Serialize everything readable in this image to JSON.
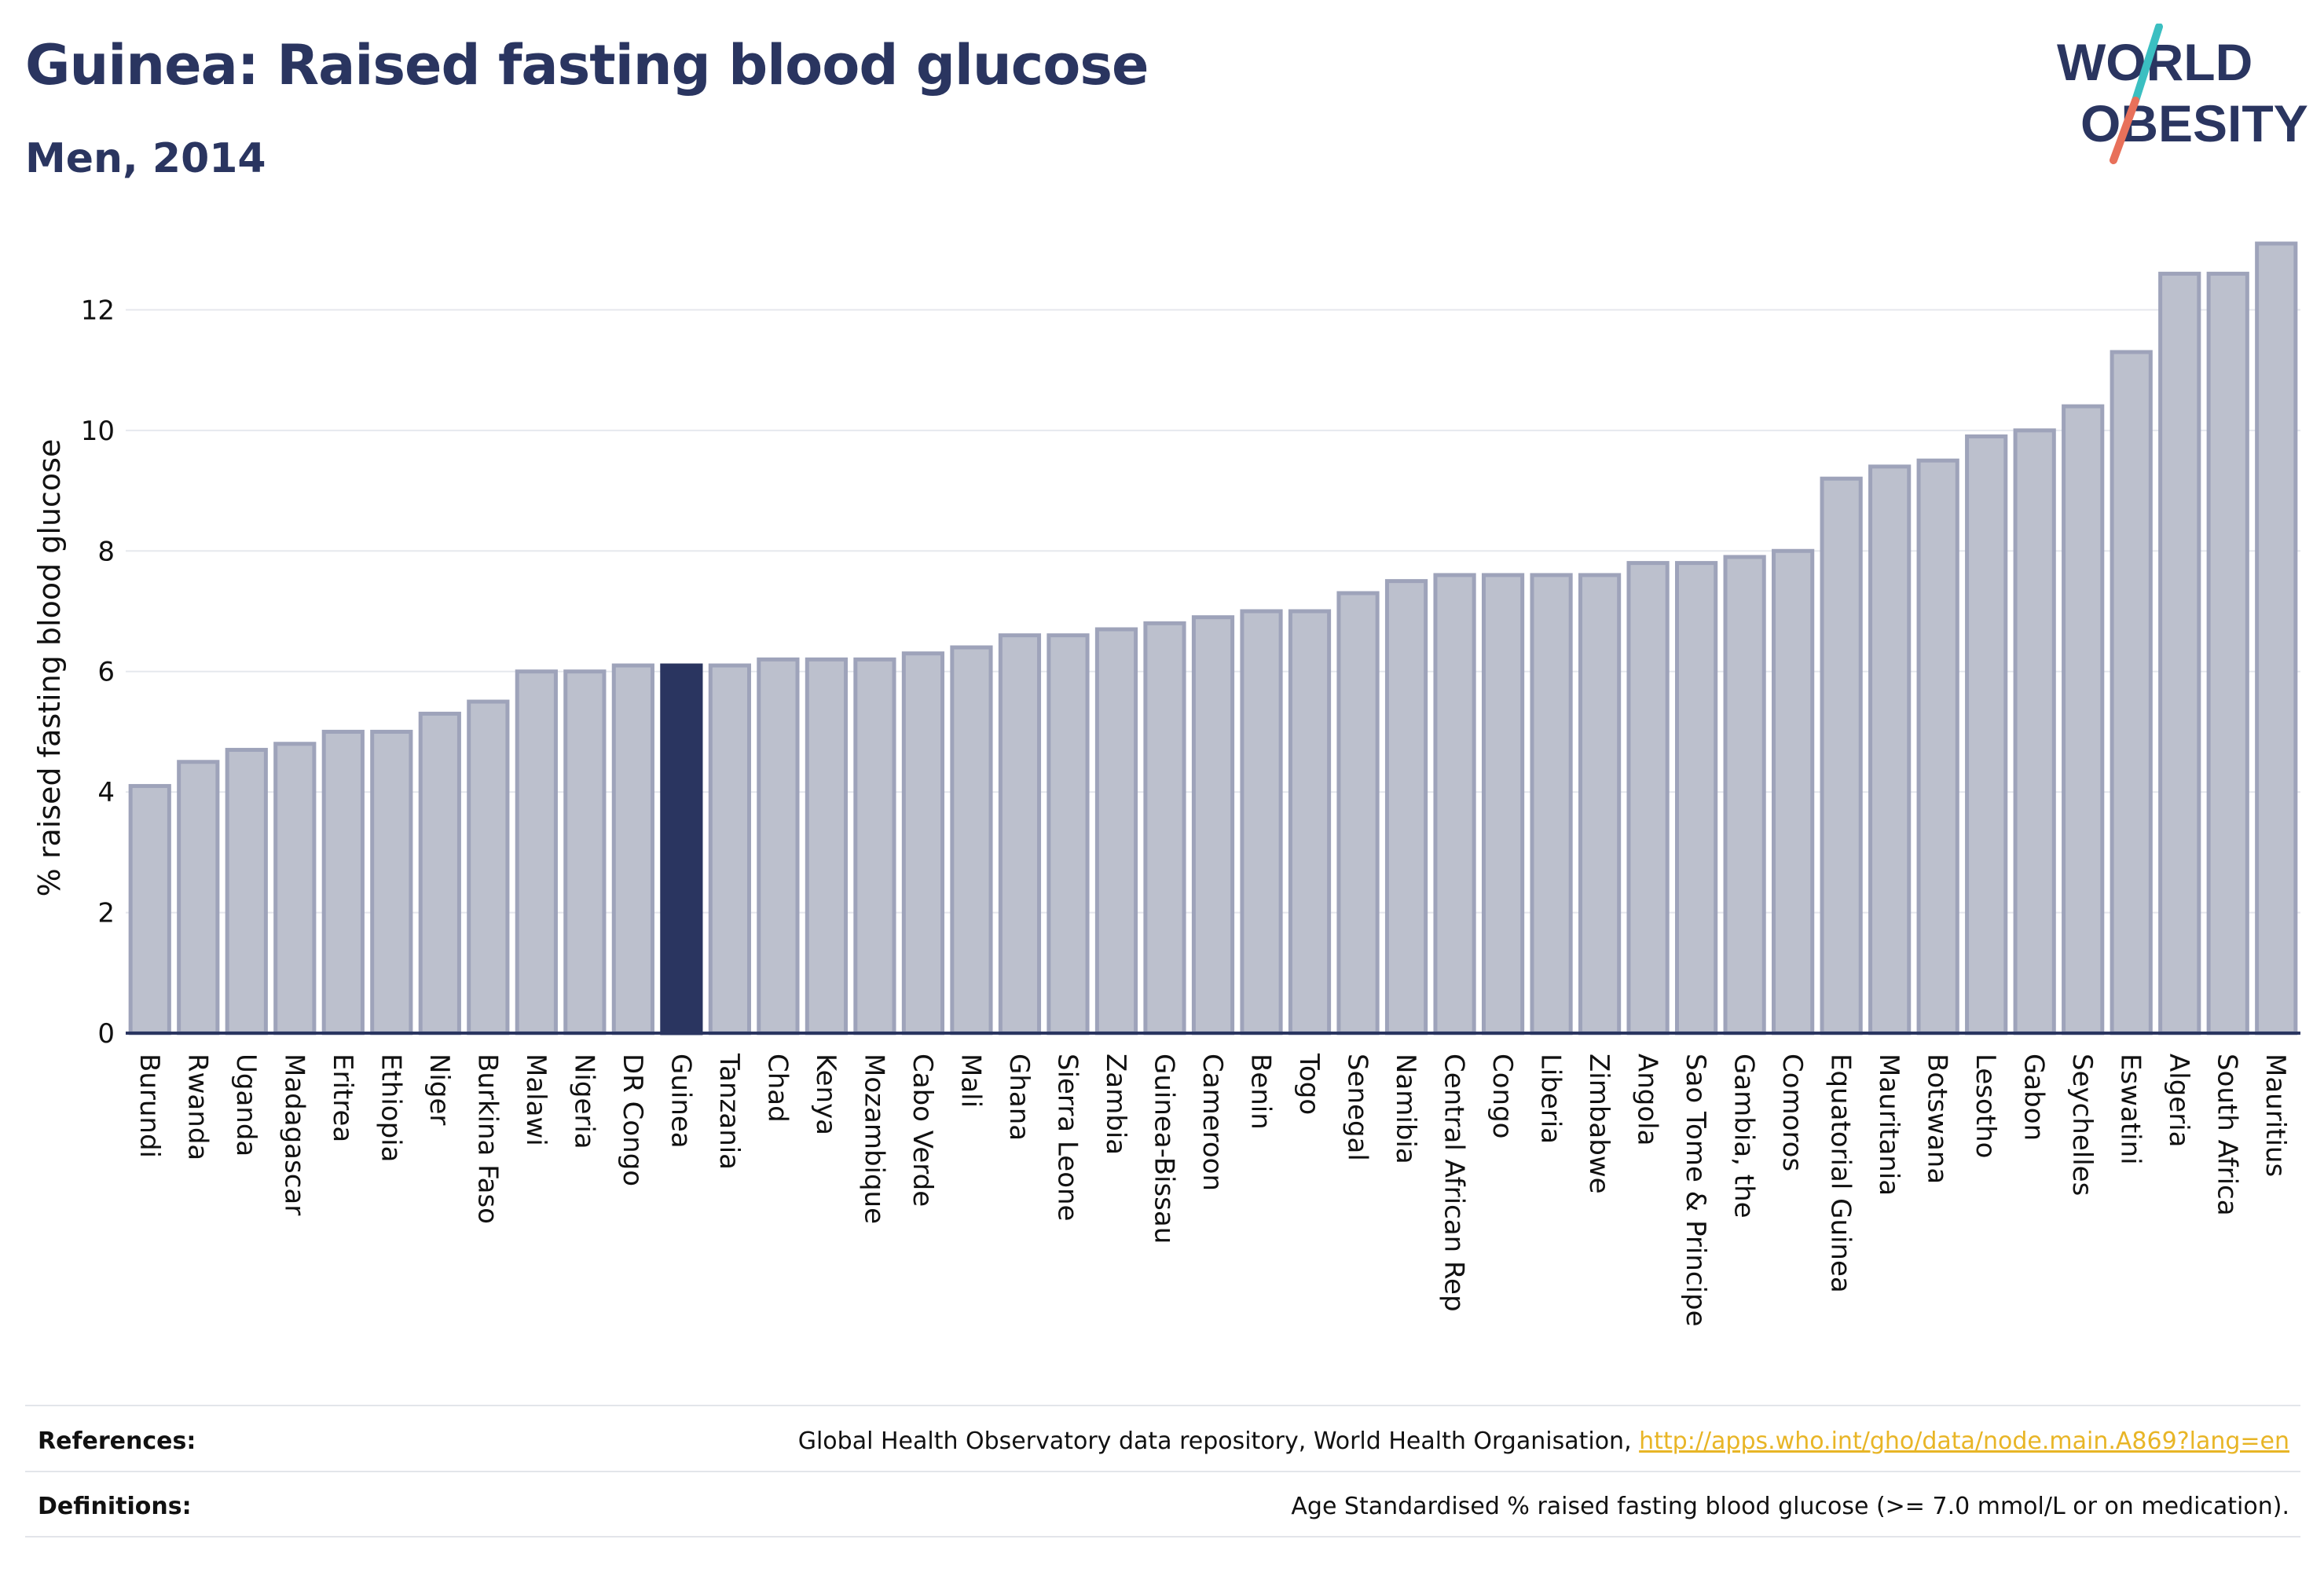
{
  "header": {
    "title": "Guinea: Raised fasting blood glucose",
    "subtitle": "Men, 2014"
  },
  "logo": {
    "line1": "WORLD",
    "line2": "OBESITY",
    "text_color": "#2a3560",
    "slash_color_top": "#3bbfc1",
    "slash_color_bottom": "#e8705a"
  },
  "colors": {
    "bar_fill": "#bcc0cd",
    "bar_stroke": "#9ea3ba",
    "highlight_fill": "#2a3560",
    "grid": "#e6e8ee",
    "axis": "#2a3560"
  },
  "chart_data": {
    "type": "bar",
    "title": "Guinea: Raised fasting blood glucose",
    "subtitle": "Men, 2014",
    "xlabel": "",
    "ylabel": "% raised fasting blood glucose",
    "ylim": [
      0,
      13.1
    ],
    "yticks": [
      0,
      2,
      4,
      6,
      8,
      10,
      12
    ],
    "grid": true,
    "highlight": "Guinea",
    "categories": [
      "Burundi",
      "Rwanda",
      "Uganda",
      "Madagascar",
      "Eritrea",
      "Ethiopia",
      "Niger",
      "Burkina Faso",
      "Malawi",
      "Nigeria",
      "DR Congo",
      "Guinea",
      "Tanzania",
      "Chad",
      "Kenya",
      "Mozambique",
      "Cabo Verde",
      "Mali",
      "Ghana",
      "Sierra Leone",
      "Zambia",
      "Guinea-Bissau",
      "Cameroon",
      "Benin",
      "Togo",
      "Senegal",
      "Namibia",
      "Central African Rep",
      "Congo",
      "Liberia",
      "Zimbabwe",
      "Angola",
      "Sao Tome & Principe",
      "Gambia, the",
      "Comoros",
      "Equatorial Guinea",
      "Mauritania",
      "Botswana",
      "Lesotho",
      "Gabon",
      "Seychelles",
      "Eswatini",
      "Algeria",
      "South Africa",
      "Mauritius"
    ],
    "values": [
      4.1,
      4.5,
      4.7,
      4.8,
      5.0,
      5.0,
      5.3,
      5.5,
      6.0,
      6.0,
      6.1,
      6.1,
      6.1,
      6.2,
      6.2,
      6.2,
      6.3,
      6.4,
      6.6,
      6.6,
      6.7,
      6.8,
      6.9,
      7.0,
      7.0,
      7.3,
      7.5,
      7.6,
      7.6,
      7.6,
      7.6,
      7.8,
      7.8,
      7.9,
      8.0,
      9.2,
      9.4,
      9.5,
      9.9,
      10.0,
      10.4,
      11.3,
      12.6,
      12.6,
      13.1
    ]
  },
  "footer": {
    "references_label": "References:",
    "references_text": "Global Health Observatory data repository, World Health Organisation, ",
    "references_link": "http://apps.who.int/gho/data/node.main.A869?lang=en",
    "definitions_label": "Definitions:",
    "definitions_text": "Age Standardised % raised fasting blood glucose (>= 7.0 mmol/L or on medication)."
  }
}
